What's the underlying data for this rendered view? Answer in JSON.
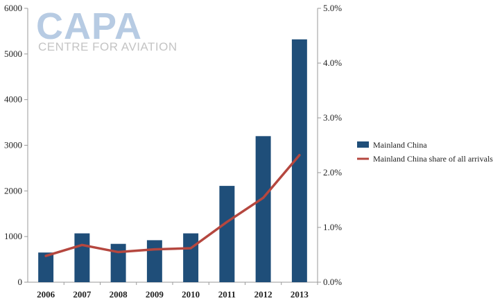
{
  "watermark": {
    "main": "CAPA",
    "sub": "CENTRE FOR AVIATION",
    "main_color": "#b7cbe3",
    "sub_color": "#c4c4c4"
  },
  "chart_data": {
    "type": "bar",
    "title": "",
    "xlabel": "",
    "ylabel": "",
    "categories": [
      "2006",
      "2007",
      "2008",
      "2009",
      "2010",
      "2011",
      "2012",
      "2013"
    ],
    "ylim": [
      0,
      6000
    ],
    "y_ticks": [
      "0",
      "1000",
      "2000",
      "3000",
      "4000",
      "5000",
      "6000"
    ],
    "y2lim": [
      0,
      5.0
    ],
    "y2_ticks": [
      "0.0%",
      "1.0%",
      "2.0%",
      "3.0%",
      "4.0%",
      "5.0%"
    ],
    "grid": false,
    "legend_position": "right",
    "series": [
      {
        "name": "Mainland China",
        "type": "bar",
        "axis": "left",
        "color": "#1f4e79",
        "values": [
          650,
          1070,
          840,
          920,
          1070,
          2110,
          3200,
          5320
        ]
      },
      {
        "name": "Mainland China share of all arrivals",
        "type": "line",
        "axis": "right",
        "unit": "%",
        "color": "#b5473f",
        "values": [
          0.48,
          0.68,
          0.55,
          0.6,
          0.62,
          1.1,
          1.54,
          2.32
        ]
      }
    ]
  }
}
